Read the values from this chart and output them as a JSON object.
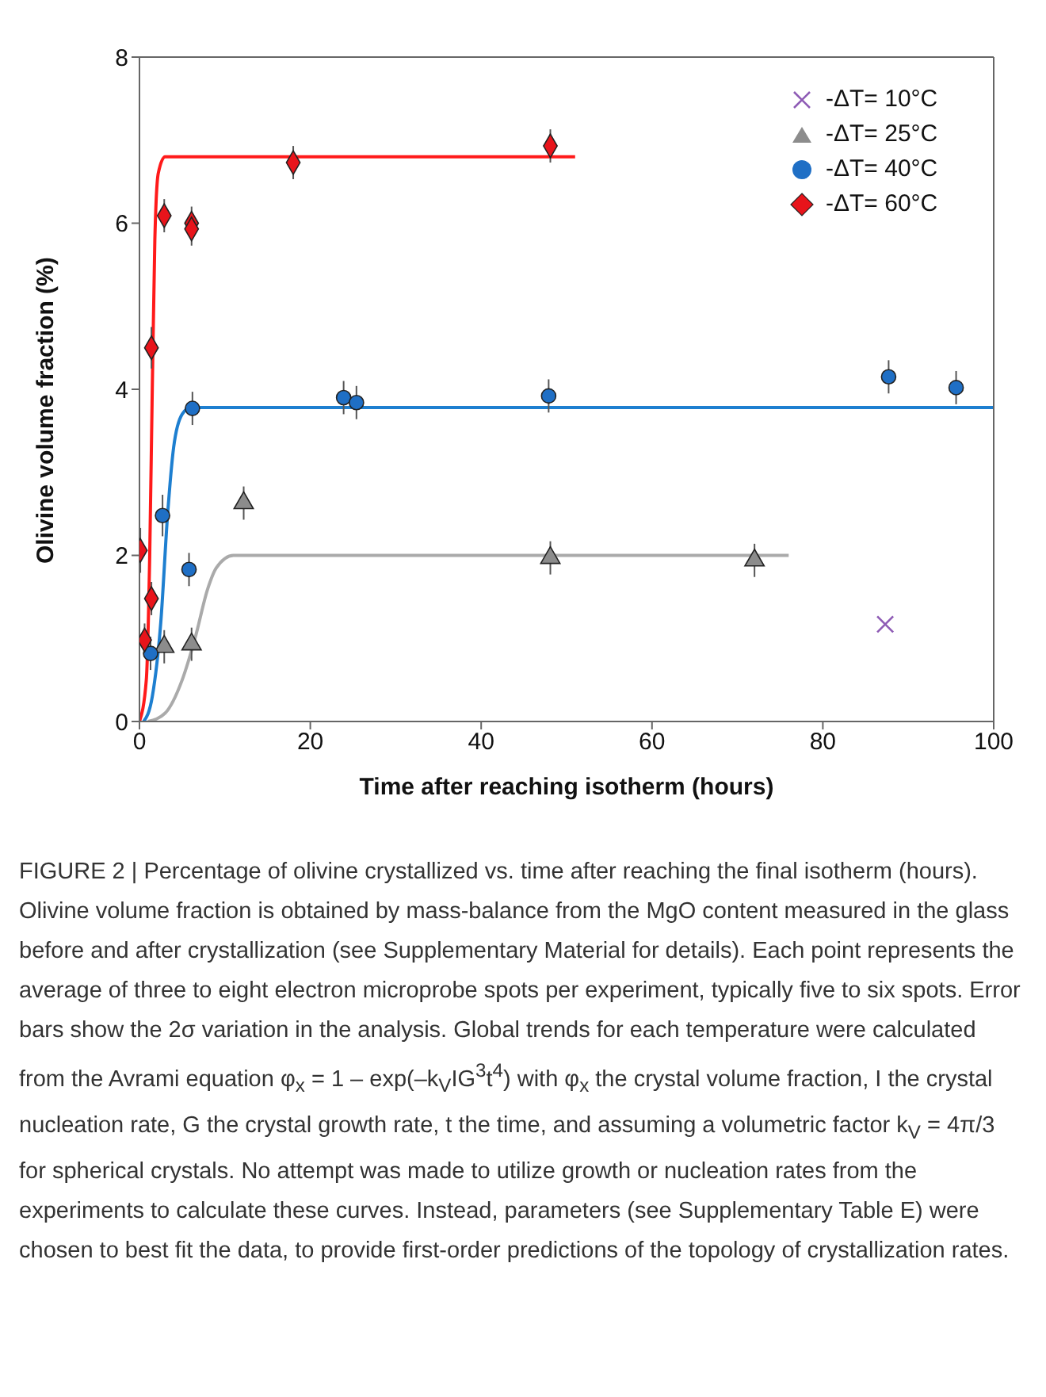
{
  "chart_data": {
    "type": "scatter",
    "xlabel": "Time after reaching isotherm (hours)",
    "ylabel": "Olivine volume fraction (%)",
    "xlim": [
      0,
      100
    ],
    "xticks": [
      0,
      20,
      40,
      60,
      80,
      100
    ],
    "ylim": [
      0,
      8
    ],
    "yticks": [
      0,
      2,
      4,
      6,
      8
    ],
    "grid": false,
    "legend": "top right",
    "series": [
      {
        "name": "-ΔT= 10°C",
        "type": "scatter",
        "marker": "cross",
        "color": "#8e5bb5",
        "x": [
          87.3
        ],
        "values": [
          1.17
        ]
      },
      {
        "name": "-ΔT= 25°C",
        "type": "scatter",
        "marker": "triangle",
        "color": "#8c8c8c",
        "x": [
          2.9,
          6.1,
          12.2,
          48.1,
          72.0
        ],
        "values": [
          0.9,
          0.93,
          2.63,
          1.97,
          1.94
        ],
        "errors": [
          0.2,
          0.2,
          0.2,
          0.2,
          0.2
        ]
      },
      {
        "name": "-ΔT= 40°C",
        "type": "scatter",
        "marker": "circle",
        "color": "#1f6fc5",
        "x": [
          1.3,
          2.7,
          5.8,
          6.2,
          23.9,
          25.4,
          47.9,
          87.7,
          95.6
        ],
        "values": [
          0.82,
          2.48,
          1.83,
          3.77,
          3.9,
          3.84,
          3.92,
          4.15,
          4.02
        ],
        "errors": [
          0.2,
          0.25,
          0.2,
          0.2,
          0.2,
          0.2,
          0.2,
          0.2,
          0.2
        ]
      },
      {
        "name": "-ΔT= 60°C",
        "type": "scatter",
        "marker": "diamond",
        "color": "#e8141b",
        "x": [
          0.1,
          0.6,
          1.4,
          1.4,
          2.9,
          6.1,
          6.1,
          18.0,
          48.1
        ],
        "values": [
          2.06,
          0.98,
          1.48,
          4.5,
          6.09,
          6.0,
          5.93,
          6.73,
          6.93
        ],
        "errors": [
          0.27,
          0.2,
          0.2,
          0.25,
          0.2,
          0.2,
          0.2,
          0.2,
          0.2
        ]
      },
      {
        "type": "line",
        "marker": "none",
        "color": "#aaaaaa",
        "x": [
          1,
          3,
          5,
          6.5,
          8,
          9,
          11,
          76
        ],
        "values": [
          0,
          0.1,
          0.5,
          1.0,
          1.6,
          1.85,
          2.0,
          2.0
        ]
      },
      {
        "type": "line",
        "marker": "none",
        "color": "#1e7fd0",
        "x": [
          0.5,
          1.5,
          2.5,
          3.3,
          4,
          5,
          6,
          100
        ],
        "values": [
          0,
          0.3,
          1.2,
          2.5,
          3.3,
          3.7,
          3.78,
          3.78
        ]
      },
      {
        "type": "line",
        "marker": "none",
        "color": "#ff1a1a",
        "x": [
          0,
          0.8,
          1.2,
          1.5,
          1.8,
          2.2,
          3,
          51
        ],
        "values": [
          0,
          0.5,
          2,
          4,
          5.8,
          6.6,
          6.8,
          6.8
        ]
      }
    ],
    "annotations": [
      "FIGURE 2 | Percentage of olivine crystallized vs. time after reaching the final isotherm (hours). Olivine volume fraction is obtained by mass-balance from the MgO content measured in the glass before and after crystallization (see Supplementary Material for details). Each point represents the average of three to eight electron microprobe spots per experiment, typically five to six spots. Error bars show the 2σ variation in the analysis. Global trends for each temperature were calculated from the Avrami equation φ$_{x}$ = 1 – exp(–k$_{V}$IG$^{3}$t$^{4}$) with φ$_{x}$ the crystal volume fraction, I the crystal nucleation rate, G the crystal growth rate, t the time, and assuming a volumetric factor k$_{V}$ = 4π/3 for spherical crystals. No attempt was made to utilize growth or nucleation rates from the experiments to calculate these curves. Instead, parameters (see Supplementary Table E) were chosen to best fit the data, to provide first-order predictions of the topology of crystallization rates."
    ]
  }
}
